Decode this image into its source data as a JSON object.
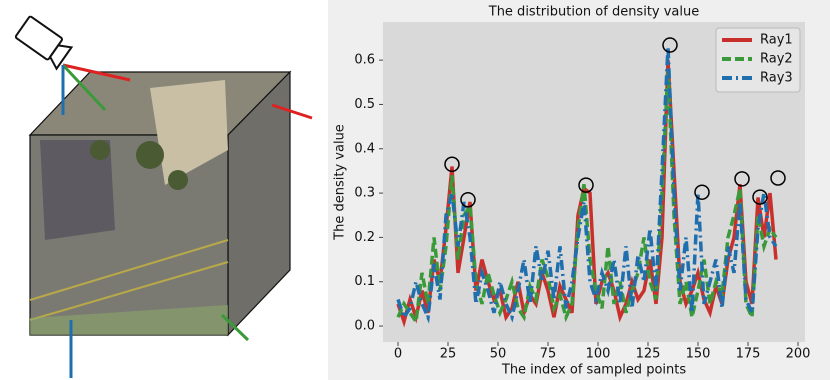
{
  "chart_data": {
    "type": "line",
    "title": "The distribution of density value",
    "x_label": "The index of sampled points",
    "y_label": "The density value",
    "x": [
      0,
      3,
      6,
      9,
      12,
      15,
      18,
      21,
      24,
      27,
      30,
      33,
      36,
      39,
      42,
      45,
      48,
      51,
      54,
      57,
      60,
      63,
      66,
      69,
      72,
      75,
      78,
      81,
      84,
      87,
      90,
      93,
      96,
      99,
      102,
      105,
      108,
      111,
      114,
      117,
      120,
      123,
      126,
      129,
      132,
      135,
      138,
      141,
      144,
      147,
      150,
      153,
      156,
      159,
      162,
      165,
      168,
      171,
      174,
      177,
      180,
      183,
      186,
      189
    ],
    "series": [
      {
        "name": "Ray1",
        "color": "#c9302c",
        "linestyle": "solid",
        "values": [
          0.05,
          0.01,
          0.06,
          0.02,
          0.08,
          0.03,
          0.15,
          0.1,
          0.22,
          0.36,
          0.12,
          0.2,
          0.28,
          0.08,
          0.15,
          0.1,
          0.06,
          0.08,
          0.02,
          0.04,
          0.1,
          0.03,
          0.07,
          0.05,
          0.12,
          0.08,
          0.02,
          0.09,
          0.06,
          0.03,
          0.25,
          0.31,
          0.3,
          0.05,
          0.1,
          0.12,
          0.08,
          0.02,
          0.05,
          0.1,
          0.06,
          0.08,
          0.15,
          0.05,
          0.2,
          0.6,
          0.35,
          0.1,
          0.05,
          0.08,
          0.12,
          0.06,
          0.03,
          0.09,
          0.05,
          0.15,
          0.2,
          0.32,
          0.1,
          0.05,
          0.29,
          0.2,
          0.3,
          0.15
        ]
      },
      {
        "name": "Ray2",
        "color": "#3a9a3a",
        "linestyle": "dashed",
        "values": [
          0.02,
          0.05,
          0.03,
          0.01,
          0.12,
          0.05,
          0.2,
          0.08,
          0.18,
          0.34,
          0.15,
          0.25,
          0.27,
          0.1,
          0.05,
          0.12,
          0.07,
          0.03,
          0.06,
          0.1,
          0.04,
          0.02,
          0.09,
          0.06,
          0.15,
          0.11,
          0.04,
          0.07,
          0.02,
          0.05,
          0.22,
          0.32,
          0.15,
          0.08,
          0.04,
          0.18,
          0.05,
          0.1,
          0.03,
          0.08,
          0.12,
          0.2,
          0.1,
          0.06,
          0.3,
          0.58,
          0.25,
          0.05,
          0.1,
          0.02,
          0.08,
          0.15,
          0.05,
          0.1,
          0.07,
          0.2,
          0.25,
          0.31,
          0.05,
          0.02,
          0.25,
          0.18,
          0.22,
          0.2
        ]
      },
      {
        "name": "Ray3",
        "color": "#1f6fae",
        "linestyle": "dashdot",
        "values": [
          0.06,
          0.02,
          0.04,
          0.1,
          0.05,
          0.02,
          0.14,
          0.06,
          0.25,
          0.3,
          0.18,
          0.28,
          0.2,
          0.05,
          0.12,
          0.08,
          0.03,
          0.1,
          0.05,
          0.02,
          0.08,
          0.15,
          0.05,
          0.18,
          0.1,
          0.17,
          0.06,
          0.18,
          0.04,
          0.1,
          0.2,
          0.28,
          0.1,
          0.06,
          0.12,
          0.08,
          0.15,
          0.05,
          0.18,
          0.04,
          0.16,
          0.1,
          0.22,
          0.08,
          0.35,
          0.63,
          0.3,
          0.08,
          0.2,
          0.03,
          0.3,
          0.05,
          0.1,
          0.15,
          0.04,
          0.18,
          0.12,
          0.28,
          0.06,
          0.03,
          0.22,
          0.3,
          0.2,
          0.18
        ]
      }
    ],
    "highlighted_points": [
      {
        "x": 27,
        "y": 0.365
      },
      {
        "x": 35,
        "y": 0.285
      },
      {
        "x": 94,
        "y": 0.318
      },
      {
        "x": 136,
        "y": 0.634
      },
      {
        "x": 152,
        "y": 0.302
      },
      {
        "x": 172,
        "y": 0.332
      },
      {
        "x": 181,
        "y": 0.291
      },
      {
        "x": 190,
        "y": 0.334
      }
    ],
    "xlim": [
      -7.5,
      203.5
    ],
    "ylim": [
      -0.036,
      0.686
    ],
    "xticks": [
      0,
      25,
      50,
      75,
      100,
      125,
      150,
      175,
      200
    ],
    "yticks": [
      {
        "value": 0,
        "label": "0.0"
      },
      0.1,
      0.2,
      0.3,
      0.4,
      0.5,
      0.6
    ],
    "grid": false,
    "legend": "upper right"
  }
}
